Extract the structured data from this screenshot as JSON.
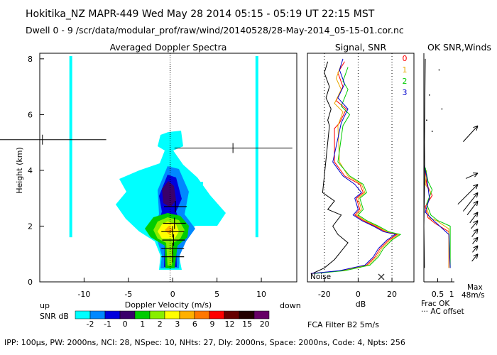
{
  "header": {
    "line1": "Hokitika_NZ   MAPR-449   Wed May 28 2014 05:15 - 05:19 UT 22:15 MST",
    "line2": "Dwell   0 -  9   /scr/data/modular_prof/raw/wind/20140528/28-May-2014_05-15-01.cor.nc"
  },
  "footer": {
    "params": "IPP: 100μs,  PW: 2000ns,  NCI:  28,  NSpec: 10, NHts: 27,  Dly: 2000ns,  Space: 2000ns,  Code: 4,  Npts: 256",
    "filter": "FCA Filter B2   5m/s"
  },
  "chart_data": [
    {
      "type": "heatmap",
      "title": "Averaged Doppler Spectra",
      "xlabel": "Doppler Velocity (m/s)",
      "ylabel": "Height (km)",
      "xlim": [
        -15,
        14
      ],
      "ylim": [
        0,
        8.2
      ],
      "xticks": [
        -10,
        -5,
        0,
        5,
        10
      ],
      "yticks": [
        0,
        2,
        4,
        6,
        8
      ],
      "direction_left": "up",
      "direction_right": "down",
      "colorbar": {
        "label": "SNR dB",
        "ticks": [
          "-2",
          "-1",
          "0",
          "1",
          "2",
          "3",
          "6",
          "9",
          "12",
          "15",
          "20"
        ],
        "colors": [
          "#00ffff",
          "#0088ff",
          "#0000dd",
          "#3a006a",
          "#00cc00",
          "#88ee00",
          "#ffff00",
          "#ffb000",
          "#ff7700",
          "#ff0000",
          "#660000",
          "#220000",
          "#660066"
        ]
      },
      "clutter_velocities": [
        -11.5,
        9.5
      ],
      "interference_rows": [
        {
          "height": 5.1,
          "from": -15,
          "to": -7.5,
          "tick": -14.7
        },
        {
          "height": 4.8,
          "from": 0.2,
          "to": 13.5,
          "tick": 6.8
        }
      ],
      "moments": [
        {
          "height": 0.9,
          "velocity": 0.0
        },
        {
          "height": 1.2,
          "velocity": 0.0
        },
        {
          "height": 1.5,
          "velocity": 0.1
        },
        {
          "height": 1.8,
          "velocity": 0.0
        },
        {
          "height": 2.1,
          "velocity": 0.2
        },
        {
          "height": 2.7,
          "velocity": 0.3
        }
      ]
    },
    {
      "type": "line",
      "title": "Signal, SNR",
      "xlabel": "dB",
      "xlim": [
        -30,
        33
      ],
      "ylim": [
        0,
        8.2
      ],
      "xticks": [
        -20,
        0,
        20
      ],
      "noise_label": "Noise",
      "series": [
        {
          "name": "signal",
          "color": "#000000",
          "points": [
            [
              -18,
              7.9
            ],
            [
              -20,
              7.5
            ],
            [
              -17,
              7.0
            ],
            [
              -19,
              6.6
            ],
            [
              -16,
              6.2
            ],
            [
              -18,
              5.8
            ],
            [
              -17,
              5.6
            ],
            [
              -21,
              3.2
            ],
            [
              -14,
              2.9
            ],
            [
              -18,
              2.6
            ],
            [
              -10,
              2.4
            ],
            [
              -15,
              2.0
            ],
            [
              -12,
              1.7
            ],
            [
              -6,
              1.4
            ],
            [
              -10,
              1.1
            ],
            [
              -14,
              0.8
            ],
            [
              -20,
              0.5
            ],
            [
              -27,
              0.3
            ]
          ]
        },
        {
          "name": "0",
          "color": "#ff0000",
          "points": [
            [
              -8,
              7.9
            ],
            [
              -12,
              7.5
            ],
            [
              -9,
              7.0
            ],
            [
              -13,
              6.5
            ],
            [
              -7,
              6.2
            ],
            [
              -11,
              5.7
            ],
            [
              -14,
              5.5
            ],
            [
              -14,
              4.3
            ],
            [
              -8,
              3.8
            ],
            [
              1,
              3.5
            ],
            [
              3,
              3.2
            ],
            [
              -1,
              3.0
            ],
            [
              1,
              2.6
            ],
            [
              -2,
              2.4
            ],
            [
              3,
              2.2
            ],
            [
              10,
              2.0
            ],
            [
              16,
              1.8
            ],
            [
              23,
              1.7
            ],
            [
              18,
              1.5
            ],
            [
              13,
              1.2
            ],
            [
              10,
              0.9
            ],
            [
              5,
              0.6
            ],
            [
              -10,
              0.4
            ],
            [
              -28,
              0.3
            ]
          ]
        },
        {
          "name": "1",
          "color": "#e8a800",
          "points": [
            [
              -10,
              7.8
            ],
            [
              -13,
              7.3
            ],
            [
              -10,
              6.9
            ],
            [
              -14,
              6.4
            ],
            [
              -9,
              6.1
            ],
            [
              -12,
              5.6
            ],
            [
              -11,
              4.3
            ],
            [
              -6,
              3.8
            ],
            [
              2,
              3.5
            ],
            [
              4,
              3.2
            ],
            [
              0,
              3.0
            ],
            [
              2,
              2.6
            ],
            [
              -1,
              2.4
            ],
            [
              4,
              2.2
            ],
            [
              11,
              2.0
            ],
            [
              17,
              1.8
            ],
            [
              24,
              1.7
            ],
            [
              19,
              1.5
            ],
            [
              14,
              1.2
            ],
            [
              11,
              0.9
            ],
            [
              6,
              0.6
            ],
            [
              -9,
              0.4
            ],
            [
              -27,
              0.3
            ]
          ]
        },
        {
          "name": "2",
          "color": "#00cc00",
          "points": [
            [
              -6,
              7.7
            ],
            [
              -9,
              7.2
            ],
            [
              -6,
              6.9
            ],
            [
              -10,
              6.3
            ],
            [
              -5,
              6.0
            ],
            [
              -9,
              5.6
            ],
            [
              -12,
              4.3
            ],
            [
              -5,
              3.8
            ],
            [
              3,
              3.5
            ],
            [
              5,
              3.2
            ],
            [
              1,
              3.0
            ],
            [
              3,
              2.6
            ],
            [
              0,
              2.4
            ],
            [
              5,
              2.2
            ],
            [
              12,
              2.0
            ],
            [
              18,
              1.8
            ],
            [
              25,
              1.7
            ],
            [
              20,
              1.5
            ],
            [
              15,
              1.2
            ],
            [
              12,
              0.9
            ],
            [
              7,
              0.6
            ],
            [
              -8,
              0.4
            ],
            [
              -26,
              0.3
            ]
          ]
        },
        {
          "name": "3",
          "color": "#0000cc",
          "points": [
            [
              -9,
              8.0
            ],
            [
              -11,
              7.6
            ],
            [
              -8,
              7.1
            ],
            [
              -12,
              6.6
            ],
            [
              -6,
              6.2
            ],
            [
              -10,
              5.7
            ],
            [
              -15,
              4.3
            ],
            [
              -9,
              3.8
            ],
            [
              -2,
              3.5
            ],
            [
              2,
              3.2
            ],
            [
              -2,
              3.0
            ],
            [
              0,
              2.6
            ],
            [
              -3,
              2.4
            ],
            [
              2,
              2.2
            ],
            [
              9,
              2.0
            ],
            [
              15,
              1.8
            ],
            [
              22,
              1.7
            ],
            [
              17,
              1.5
            ],
            [
              12,
              1.2
            ],
            [
              9,
              0.9
            ],
            [
              4,
              0.6
            ],
            [
              -11,
              0.4
            ],
            [
              -28,
              0.3
            ]
          ]
        }
      ]
    },
    {
      "type": "line",
      "title": "OK SNR,Winds",
      "legend": [
        "0",
        "1",
        "2",
        "3"
      ],
      "xlabel": "Frac OK",
      "xlim": [
        0,
        1.1
      ],
      "ylim": [
        0,
        8.2
      ],
      "xticks": [
        0.5,
        1
      ],
      "ac_offset_label": "··· AC offset",
      "max_label": "Max",
      "max_speed": "48m/s",
      "wind_barbs": [
        {
          "height": 5.6,
          "u": 22,
          "v": 24
        },
        {
          "height": 3.9,
          "u": 18,
          "v": 8
        },
        {
          "height": 3.5,
          "u": 30,
          "v": 30
        },
        {
          "height": 3.2,
          "u": 22,
          "v": 28
        },
        {
          "height": 2.9,
          "u": 16,
          "v": 21
        },
        {
          "height": 2.5,
          "u": 12,
          "v": 16
        },
        {
          "height": 2.2,
          "u": 10,
          "v": 12
        },
        {
          "height": 1.9,
          "u": 9,
          "v": 12
        },
        {
          "height": 1.6,
          "u": 8,
          "v": 10
        },
        {
          "height": 1.3,
          "u": 8,
          "v": 10
        },
        {
          "height": 1.0,
          "u": 9,
          "v": 11
        }
      ],
      "series": [
        {
          "name": "0",
          "color": "#ff0000",
          "points": [
            [
              0.05,
              4.0
            ],
            [
              0.1,
              3.5
            ],
            [
              0.3,
              3.1
            ],
            [
              0.05,
              2.7
            ],
            [
              0.15,
              2.3
            ],
            [
              0.4,
              2.1
            ],
            [
              0.9,
              1.8
            ],
            [
              0.9,
              0.5
            ]
          ]
        },
        {
          "name": "1",
          "color": "#e8a800",
          "points": [
            [
              0.1,
              4.0
            ],
            [
              0.05,
              3.5
            ],
            [
              0.25,
              3.2
            ],
            [
              0.1,
              2.7
            ],
            [
              0.2,
              2.3
            ],
            [
              0.45,
              2.2
            ],
            [
              0.9,
              1.9
            ],
            [
              0.9,
              0.5
            ]
          ]
        },
        {
          "name": "2",
          "color": "#00cc00",
          "points": [
            [
              0.05,
              4.1
            ],
            [
              0.15,
              3.6
            ],
            [
              0.3,
              3.3
            ],
            [
              0.1,
              2.8
            ],
            [
              0.25,
              2.4
            ],
            [
              0.5,
              2.2
            ],
            [
              0.95,
              2.0
            ],
            [
              0.95,
              0.5
            ]
          ]
        },
        {
          "name": "3",
          "color": "#0000cc",
          "points": [
            [
              0.0,
              8.0
            ],
            [
              0.0,
              4.2
            ],
            [
              0.1,
              3.8
            ],
            [
              0.2,
              3.0
            ],
            [
              0.05,
              2.5
            ],
            [
              0.35,
              2.2
            ],
            [
              0.9,
              1.7
            ],
            [
              0.95,
              0.5
            ]
          ]
        },
        {
          "name": "black",
          "color": "#000000",
          "points": [
            [
              0.05,
              8.0
            ],
            [
              0.02,
              5.0
            ],
            [
              0.03,
              4.0
            ],
            [
              0.0,
              2.0
            ],
            [
              0.02,
              0.5
            ]
          ]
        }
      ]
    }
  ]
}
